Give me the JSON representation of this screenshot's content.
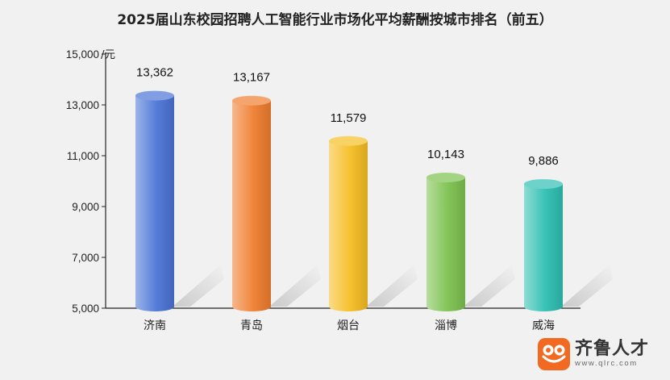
{
  "chart_data": {
    "type": "bar",
    "title": "2025届山东校园招聘人工智能行业市场化平均薪酬按城市排名（前五）",
    "ylabel": "/元",
    "ylim": [
      5000,
      15000
    ],
    "yticks": [
      "5,000",
      "7,000",
      "9,000",
      "11,000",
      "13,000",
      "15,000"
    ],
    "ytick_values": [
      5000,
      7000,
      9000,
      11000,
      13000,
      15000
    ],
    "categories": [
      "济南",
      "青岛",
      "烟台",
      "淄博",
      "威海"
    ],
    "values": [
      13362,
      13167,
      11579,
      10143,
      9886
    ],
    "value_labels": [
      "13,362",
      "13,167",
      "11,579",
      "10,143",
      "9,886"
    ],
    "colors": [
      "#4b74d6",
      "#ef7e2f",
      "#f5be23",
      "#7cc24f",
      "#2fbfb2"
    ],
    "grid": false
  },
  "logo": {
    "name": "齐鲁人才",
    "url": "www.qlrc.com"
  }
}
